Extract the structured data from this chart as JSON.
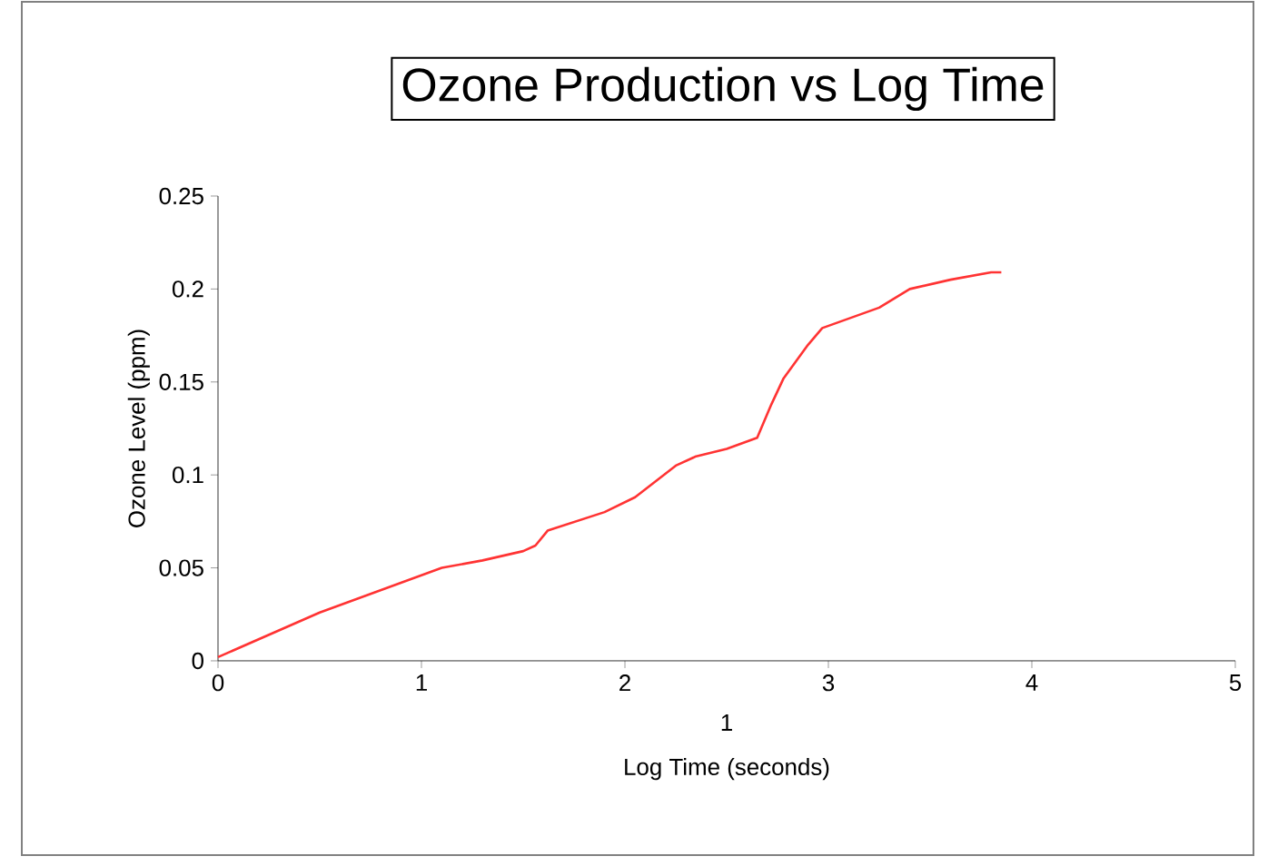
{
  "chart_data": {
    "type": "line",
    "title": "Ozone Production vs Log Time",
    "xlabel": "Log Time (seconds)",
    "ylabel": "Ozone Level (ppm)",
    "annotations": [
      "1"
    ],
    "xlim": [
      0,
      5
    ],
    "xticks": [
      0,
      1,
      2,
      3,
      4,
      5
    ],
    "ylim": [
      0,
      0.25
    ],
    "yticks": [
      0,
      0.05,
      0.1,
      0.15,
      0.2,
      0.25
    ],
    "grid": false,
    "legend": false,
    "marker": "none",
    "line_style": "solid",
    "series": [
      {
        "color": "#ff3333",
        "x": [
          0,
          0.5,
          1.1,
          1.3,
          1.5,
          1.56,
          1.62,
          1.9,
          2.05,
          2.25,
          2.35,
          2.5,
          2.65,
          2.72,
          2.78,
          2.9,
          2.97,
          3.25,
          3.4,
          3.6,
          3.8,
          3.85
        ],
        "values": [
          0.002,
          0.026,
          0.05,
          0.054,
          0.059,
          0.062,
          0.07,
          0.08,
          0.088,
          0.105,
          0.11,
          0.114,
          0.12,
          0.138,
          0.152,
          0.17,
          0.179,
          0.19,
          0.2,
          0.205,
          0.209,
          0.209
        ]
      }
    ]
  }
}
